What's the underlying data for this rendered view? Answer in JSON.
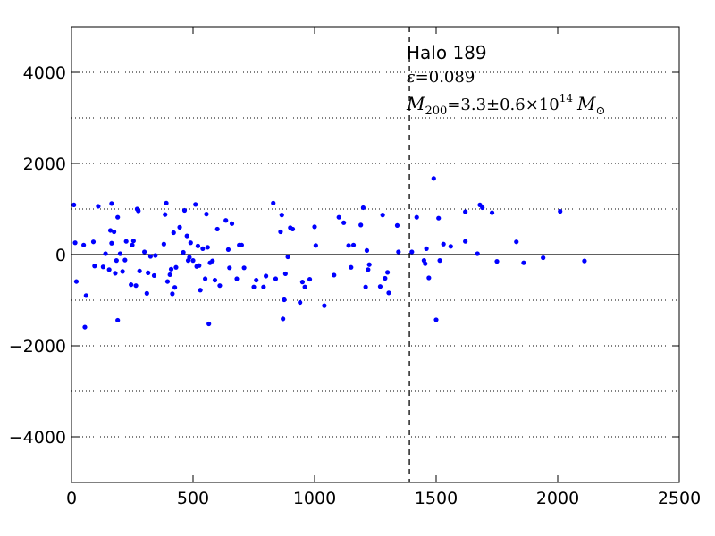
{
  "chart_data": {
    "type": "scatter",
    "xlim": [
      0,
      2500
    ],
    "ylim": [
      -5000,
      5000
    ],
    "x_ticks": [
      0,
      500,
      1000,
      1500,
      2000,
      2500
    ],
    "y_ticks": [
      -4000,
      -2000,
      0,
      2000,
      4000
    ],
    "x_tick_labels": [
      "0",
      "500",
      "1000",
      "1500",
      "2000",
      "2500"
    ],
    "y_tick_labels": [
      "−4000",
      "−2000",
      "0",
      "2000",
      "4000"
    ],
    "grid": {
      "horizontal_dotted_at": [
        -4000,
        -3000,
        -2000,
        -1000,
        1000,
        2000,
        3000,
        4000
      ]
    },
    "zero_line": 0,
    "vertical_dashed_line_x": 1390,
    "marker_color": "#0000ff",
    "annotation": {
      "line1": "Halo 189",
      "line2_symbol": "ε",
      "line2_value": "=0.089",
      "line3_symbol": "M",
      "line3_sub": "200",
      "line3_value": "=3.3±0.6×10",
      "line3_exp": "14",
      "line3_unit": "M",
      "line3_unit_sub": "⊙"
    },
    "points": [
      [
        10,
        1090
      ],
      [
        15,
        260
      ],
      [
        20,
        -590
      ],
      [
        50,
        210
      ],
      [
        55,
        -1590
      ],
      [
        60,
        -900
      ],
      [
        90,
        280
      ],
      [
        95,
        -250
      ],
      [
        110,
        1060
      ],
      [
        130,
        -270
      ],
      [
        140,
        20
      ],
      [
        155,
        -330
      ],
      [
        160,
        530
      ],
      [
        165,
        1120
      ],
      [
        165,
        250
      ],
      [
        175,
        500
      ],
      [
        180,
        -410
      ],
      [
        185,
        -130
      ],
      [
        190,
        -1440
      ],
      [
        190,
        820
      ],
      [
        200,
        20
      ],
      [
        210,
        -370
      ],
      [
        220,
        -120
      ],
      [
        225,
        290
      ],
      [
        245,
        -660
      ],
      [
        250,
        210
      ],
      [
        255,
        300
      ],
      [
        265,
        -680
      ],
      [
        270,
        1000
      ],
      [
        275,
        960
      ],
      [
        280,
        -360
      ],
      [
        300,
        60
      ],
      [
        310,
        -850
      ],
      [
        315,
        -400
      ],
      [
        325,
        -40
      ],
      [
        340,
        -460
      ],
      [
        345,
        -20
      ],
      [
        380,
        230
      ],
      [
        385,
        880
      ],
      [
        390,
        1130
      ],
      [
        395,
        -590
      ],
      [
        405,
        -440
      ],
      [
        410,
        -320
      ],
      [
        415,
        -860
      ],
      [
        420,
        480
      ],
      [
        425,
        -720
      ],
      [
        430,
        -280
      ],
      [
        445,
        600
      ],
      [
        460,
        50
      ],
      [
        465,
        970
      ],
      [
        475,
        410
      ],
      [
        480,
        -130
      ],
      [
        485,
        -60
      ],
      [
        490,
        260
      ],
      [
        500,
        -130
      ],
      [
        510,
        1100
      ],
      [
        515,
        -260
      ],
      [
        520,
        190
      ],
      [
        525,
        -240
      ],
      [
        530,
        -780
      ],
      [
        540,
        130
      ],
      [
        550,
        -530
      ],
      [
        555,
        890
      ],
      [
        560,
        160
      ],
      [
        565,
        -1520
      ],
      [
        570,
        -180
      ],
      [
        580,
        -140
      ],
      [
        590,
        -560
      ],
      [
        600,
        560
      ],
      [
        610,
        -680
      ],
      [
        635,
        750
      ],
      [
        645,
        110
      ],
      [
        650,
        -290
      ],
      [
        660,
        680
      ],
      [
        680,
        -530
      ],
      [
        690,
        210
      ],
      [
        700,
        210
      ],
      [
        710,
        -290
      ],
      [
        750,
        -710
      ],
      [
        760,
        -560
      ],
      [
        790,
        -710
      ],
      [
        800,
        -470
      ],
      [
        830,
        1130
      ],
      [
        840,
        -530
      ],
      [
        860,
        500
      ],
      [
        865,
        870
      ],
      [
        870,
        -1410
      ],
      [
        875,
        -990
      ],
      [
        880,
        -420
      ],
      [
        890,
        -50
      ],
      [
        900,
        590
      ],
      [
        910,
        560
      ],
      [
        940,
        -1050
      ],
      [
        950,
        -600
      ],
      [
        960,
        -710
      ],
      [
        980,
        -540
      ],
      [
        1000,
        610
      ],
      [
        1005,
        200
      ],
      [
        1040,
        -1120
      ],
      [
        1080,
        -450
      ],
      [
        1100,
        820
      ],
      [
        1120,
        700
      ],
      [
        1140,
        200
      ],
      [
        1150,
        -280
      ],
      [
        1160,
        210
      ],
      [
        1190,
        650
      ],
      [
        1200,
        1030
      ],
      [
        1210,
        -710
      ],
      [
        1215,
        90
      ],
      [
        1220,
        -330
      ],
      [
        1225,
        -220
      ],
      [
        1270,
        -700
      ],
      [
        1280,
        870
      ],
      [
        1290,
        -520
      ],
      [
        1300,
        -390
      ],
      [
        1305,
        -840
      ],
      [
        1340,
        640
      ],
      [
        1345,
        60
      ],
      [
        1400,
        60
      ],
      [
        1420,
        820
      ],
      [
        1450,
        -130
      ],
      [
        1455,
        -200
      ],
      [
        1460,
        130
      ],
      [
        1470,
        -510
      ],
      [
        1490,
        1670
      ],
      [
        1500,
        -1430
      ],
      [
        1510,
        800
      ],
      [
        1515,
        -130
      ],
      [
        1530,
        230
      ],
      [
        1560,
        180
      ],
      [
        1620,
        940
      ],
      [
        1620,
        290
      ],
      [
        1670,
        20
      ],
      [
        1680,
        1090
      ],
      [
        1690,
        1030
      ],
      [
        1730,
        920
      ],
      [
        1750,
        -150
      ],
      [
        1830,
        280
      ],
      [
        1860,
        -180
      ],
      [
        1940,
        -70
      ],
      [
        2010,
        950
      ],
      [
        2110,
        -140
      ]
    ]
  }
}
